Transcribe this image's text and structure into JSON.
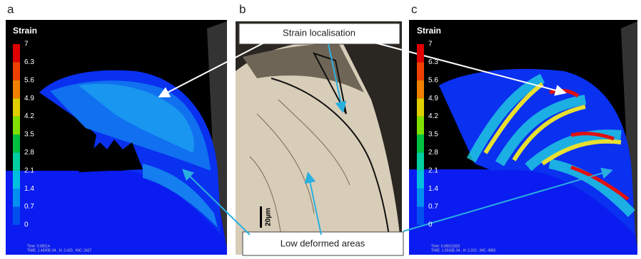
{
  "panels": [
    {
      "label": "a",
      "legend": {
        "title": "Strain",
        "ticks": [
          "7",
          "6.3",
          "5.6",
          "4.9",
          "4.2",
          "3.5",
          "2.8",
          "2.1",
          "1.4",
          "0.7",
          "0"
        ]
      },
      "footer": [
        "Time: 0.00014",
        "TIME: 1.4000E-04 , H: 2.420 , INC: 2427"
      ]
    },
    {
      "label": "b",
      "scale_bar": "20µm"
    },
    {
      "label": "c",
      "legend": {
        "title": "Strain",
        "ticks": [
          "7",
          "6.3",
          "5.6",
          "4.9",
          "4.2",
          "3.5",
          "2.8",
          "2.1",
          "1.4",
          "0.7",
          "0"
        ]
      },
      "footer": [
        "Time: 0.00010333",
        "TIME: 1.0333E-04 , H: 2.310 , INC: 4883"
      ]
    }
  ],
  "callouts": {
    "top": "Strain localisation",
    "bottom": "Low deformed areas"
  }
}
